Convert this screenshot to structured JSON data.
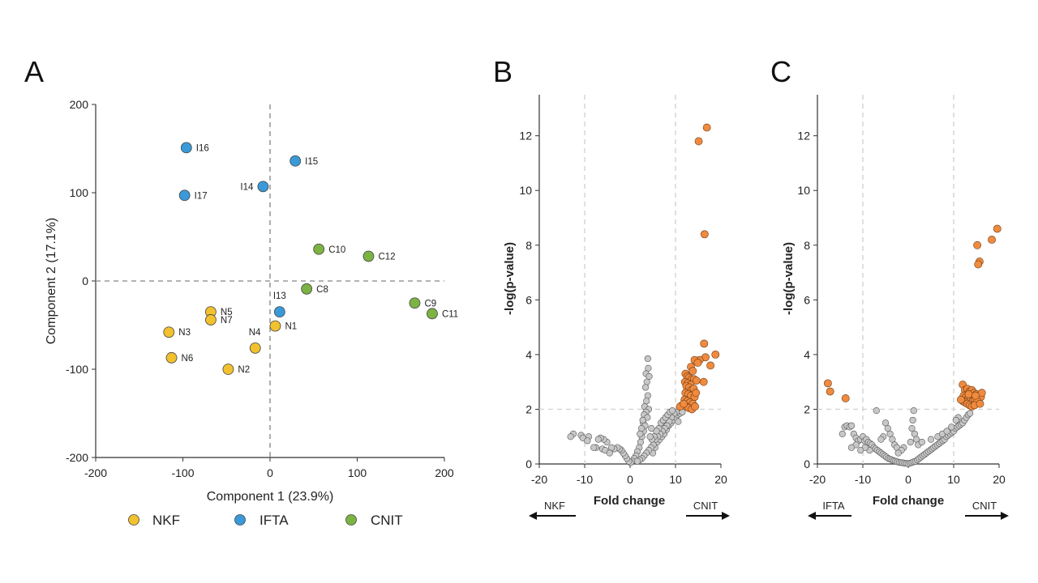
{
  "colors": {
    "NKF": "#f2c12e",
    "IFTA": "#3a9ad9",
    "CNIT": "#7cb342",
    "sig": "#f08a3e",
    "nonsig": "#c8c8c8"
  },
  "legend": [
    {
      "key": "NKF",
      "label": "NKF"
    },
    {
      "key": "IFTA",
      "label": "IFTA"
    },
    {
      "key": "CNIT",
      "label": "CNIT"
    }
  ],
  "chart_data": [
    {
      "panel": "A",
      "type": "scatter",
      "xlabel": "Component 1 (23.9%)",
      "ylabel": "Component 2 (17.1%)",
      "xlim": [
        -200,
        200
      ],
      "ylim": [
        -200,
        200
      ],
      "xticks": [
        -200,
        -100,
        0,
        100,
        200
      ],
      "yticks": [
        -200,
        -100,
        0,
        100,
        200
      ],
      "reference_lines": {
        "x": 0,
        "y": 0
      },
      "points": [
        {
          "label": "I16",
          "group": "IFTA",
          "x": -96,
          "y": 151
        },
        {
          "label": "I15",
          "group": "IFTA",
          "x": 29,
          "y": 136
        },
        {
          "label": "I14",
          "group": "IFTA",
          "x": -8,
          "y": 107
        },
        {
          "label": "I17",
          "group": "IFTA",
          "x": -98,
          "y": 97
        },
        {
          "label": "I13",
          "group": "IFTA",
          "x": 11,
          "y": -35
        },
        {
          "label": "C10",
          "group": "CNIT",
          "x": 56,
          "y": 36
        },
        {
          "label": "C12",
          "group": "CNIT",
          "x": 113,
          "y": 28
        },
        {
          "label": "C8",
          "group": "CNIT",
          "x": 42,
          "y": -9
        },
        {
          "label": "C9",
          "group": "CNIT",
          "x": 166,
          "y": -25
        },
        {
          "label": "C11",
          "group": "CNIT",
          "x": 186,
          "y": -37
        },
        {
          "label": "N5",
          "group": "NKF",
          "x": -68,
          "y": -35
        },
        {
          "label": "N7",
          "group": "NKF",
          "x": -68,
          "y": -44
        },
        {
          "label": "N3",
          "group": "NKF",
          "x": -116,
          "y": -58
        },
        {
          "label": "N6",
          "group": "NKF",
          "x": -113,
          "y": -87
        },
        {
          "label": "N1",
          "group": "NKF",
          "x": 6,
          "y": -51
        },
        {
          "label": "N4",
          "group": "NKF",
          "x": -17,
          "y": -76
        },
        {
          "label": "N2",
          "group": "NKF",
          "x": -48,
          "y": -100
        }
      ]
    },
    {
      "panel": "B",
      "type": "scatter",
      "subtype": "volcano",
      "xlabel": "Fold change",
      "ylabel": "-log(p-value)",
      "xlim": [
        -20,
        20
      ],
      "ylim": [
        0,
        13.5
      ],
      "xticks": [
        -20,
        -10,
        0,
        10,
        20
      ],
      "yticks": [
        0,
        2,
        4,
        6,
        8,
        10,
        12
      ],
      "reference_lines": {
        "x": [
          -10,
          10
        ],
        "y": 2
      },
      "direction_labels": {
        "left": "NKF",
        "right": "CNIT"
      },
      "significant_points": [
        [
          16.9,
          12.3
        ],
        [
          15.1,
          11.8
        ],
        [
          16.4,
          8.4
        ],
        [
          16.3,
          4.4
        ],
        [
          18.8,
          4.0
        ],
        [
          16.6,
          3.9
        ],
        [
          15.3,
          3.8
        ],
        [
          14.2,
          3.8
        ],
        [
          14.9,
          3.7
        ],
        [
          13.4,
          3.55
        ],
        [
          17.7,
          3.6
        ],
        [
          13.8,
          3.4
        ],
        [
          12.2,
          3.3
        ],
        [
          12.6,
          3.2
        ],
        [
          13.0,
          3.15
        ],
        [
          13.6,
          3.1
        ],
        [
          14.1,
          3.1
        ],
        [
          14.6,
          3.05
        ],
        [
          12.1,
          3.0
        ],
        [
          12.7,
          2.95
        ],
        [
          13.3,
          2.9
        ],
        [
          16.2,
          3.0
        ],
        [
          12.4,
          2.85
        ],
        [
          13.0,
          2.8
        ],
        [
          13.5,
          2.7
        ],
        [
          14.0,
          2.75
        ],
        [
          12.2,
          2.6
        ],
        [
          12.8,
          2.55
        ],
        [
          13.4,
          2.5
        ],
        [
          14.2,
          2.45
        ],
        [
          12.0,
          2.35
        ],
        [
          12.6,
          2.3
        ],
        [
          13.2,
          2.25
        ],
        [
          13.8,
          2.2
        ],
        [
          11.5,
          2.15
        ],
        [
          12.3,
          2.1
        ],
        [
          11.0,
          2.1
        ],
        [
          12.9,
          2.05
        ],
        [
          13.6,
          2.0
        ],
        [
          14.3,
          2.1
        ],
        [
          11.8,
          2.2
        ],
        [
          14.5,
          2.6
        ]
      ],
      "nonsignificant_points": [
        [
          3.9,
          3.85
        ],
        [
          4.0,
          3.5
        ],
        [
          3.5,
          3.3
        ],
        [
          4.2,
          3.2
        ],
        [
          3.7,
          3.0
        ],
        [
          3.4,
          2.8
        ],
        [
          3.9,
          2.5
        ],
        [
          3.6,
          2.3
        ],
        [
          3.2,
          2.1
        ],
        [
          4.1,
          2.0
        ],
        [
          3.5,
          1.9
        ],
        [
          3.1,
          1.8
        ],
        [
          3.8,
          1.7
        ],
        [
          2.9,
          1.5
        ],
        [
          3.3,
          1.4
        ],
        [
          3.0,
          1.2
        ],
        [
          2.6,
          1.0
        ],
        [
          2.3,
          0.8
        ],
        [
          2.0,
          0.6
        ],
        [
          1.6,
          0.45
        ],
        [
          1.3,
          0.3
        ],
        [
          0.9,
          0.2
        ],
        [
          0.5,
          0.1
        ],
        [
          0.1,
          0.05
        ],
        [
          -0.3,
          0.1
        ],
        [
          -0.7,
          0.2
        ],
        [
          -1.1,
          0.3
        ],
        [
          -1.5,
          0.4
        ],
        [
          -1.9,
          0.5
        ],
        [
          -2.3,
          0.55
        ],
        [
          -2.8,
          0.6
        ],
        [
          -3.5,
          0.55
        ],
        [
          -4.1,
          0.6
        ],
        [
          -5.1,
          0.8
        ],
        [
          -5.8,
          0.9
        ],
        [
          -6.5,
          0.95
        ],
        [
          -7.0,
          0.9
        ],
        [
          -7.5,
          0.6
        ],
        [
          -8.0,
          0.6
        ],
        [
          -9.1,
          1.0
        ],
        [
          -10.8,
          1.05
        ],
        [
          -12.5,
          1.1
        ],
        [
          -13.1,
          1.0
        ],
        [
          -10.4,
          0.95
        ],
        [
          -9.4,
          0.85
        ],
        [
          -6.1,
          0.55
        ],
        [
          -5.5,
          0.5
        ],
        [
          -4.5,
          0.4
        ],
        [
          5.0,
          0.4
        ],
        [
          5.5,
          0.6
        ],
        [
          6.0,
          0.8
        ],
        [
          6.5,
          0.9
        ],
        [
          7.0,
          1.0
        ],
        [
          7.5,
          1.1
        ],
        [
          8.0,
          1.25
        ],
        [
          8.5,
          1.4
        ],
        [
          9.0,
          1.5
        ],
        [
          9.5,
          1.6
        ],
        [
          10.0,
          1.7
        ],
        [
          10.5,
          1.8
        ],
        [
          11.0,
          1.85
        ],
        [
          11.5,
          1.9
        ],
        [
          10.2,
          1.9
        ],
        [
          9.7,
          1.85
        ],
        [
          9.1,
          1.7
        ],
        [
          8.6,
          1.55
        ],
        [
          8.1,
          1.4
        ],
        [
          7.6,
          1.3
        ],
        [
          7.1,
          1.2
        ],
        [
          6.6,
          1.1
        ],
        [
          6.1,
          1.0
        ],
        [
          5.6,
          0.9
        ],
        [
          5.1,
          0.7
        ],
        [
          4.6,
          0.6
        ],
        [
          4.1,
          0.5
        ],
        [
          3.6,
          0.4
        ],
        [
          3.1,
          0.3
        ],
        [
          2.6,
          0.2
        ],
        [
          2.1,
          0.15
        ],
        [
          1.6,
          0.1
        ],
        [
          6.8,
          1.5
        ],
        [
          7.3,
          1.6
        ],
        [
          7.8,
          1.7
        ],
        [
          8.3,
          1.8
        ],
        [
          8.8,
          1.9
        ],
        [
          9.3,
          1.95
        ],
        [
          6.3,
          1.3
        ],
        [
          5.8,
          1.2
        ],
        [
          5.3,
          1.0
        ],
        [
          4.8,
          0.9
        ],
        [
          2.5,
          1.3
        ],
        [
          2.8,
          1.6
        ],
        [
          2.2,
          1.1
        ],
        [
          4.4,
          1.0
        ],
        [
          4.7,
          1.3
        ],
        [
          10.6,
          1.55
        ]
      ]
    },
    {
      "panel": "C",
      "type": "scatter",
      "subtype": "volcano",
      "xlabel": "Fold change",
      "ylabel": "-log(p-value)",
      "xlim": [
        -20,
        20
      ],
      "ylim": [
        0,
        13.5
      ],
      "xticks": [
        -20,
        -10,
        0,
        10,
        20
      ],
      "yticks": [
        0,
        2,
        4,
        6,
        8,
        10,
        12
      ],
      "reference_lines": {
        "x": [
          -10,
          10
        ],
        "y": 2
      },
      "direction_labels": {
        "left": "IFTA",
        "right": "CNIT"
      },
      "significant_points": [
        [
          19.6,
          8.6
        ],
        [
          18.4,
          8.2
        ],
        [
          15.2,
          8.0
        ],
        [
          15.7,
          7.4
        ],
        [
          15.4,
          7.3
        ],
        [
          -17.7,
          2.95
        ],
        [
          -17.2,
          2.65
        ],
        [
          -13.8,
          2.4
        ],
        [
          12.0,
          2.9
        ],
        [
          12.5,
          2.7
        ],
        [
          13.0,
          2.75
        ],
        [
          13.5,
          2.65
        ],
        [
          14.0,
          2.7
        ],
        [
          14.5,
          2.6
        ],
        [
          15.0,
          2.55
        ],
        [
          15.5,
          2.5
        ],
        [
          16.0,
          2.45
        ],
        [
          12.2,
          2.5
        ],
        [
          12.7,
          2.45
        ],
        [
          13.2,
          2.4
        ],
        [
          13.7,
          2.35
        ],
        [
          14.2,
          2.3
        ],
        [
          14.7,
          2.35
        ],
        [
          15.2,
          2.3
        ],
        [
          12.0,
          2.3
        ],
        [
          12.5,
          2.25
        ],
        [
          13.0,
          2.2
        ],
        [
          13.5,
          2.15
        ],
        [
          14.0,
          2.1
        ],
        [
          14.6,
          2.15
        ],
        [
          11.6,
          2.35
        ],
        [
          15.8,
          2.2
        ],
        [
          16.2,
          2.6
        ],
        [
          13.3,
          2.55
        ],
        [
          14.8,
          2.5
        ]
      ],
      "nonsignificant_points": [
        [
          -14.5,
          1.1
        ],
        [
          -14.0,
          1.35
        ],
        [
          -13.5,
          1.4
        ],
        [
          -12.9,
          1.35
        ],
        [
          -12.5,
          1.4
        ],
        [
          -12.0,
          1.1
        ],
        [
          -11.5,
          0.95
        ],
        [
          -11.0,
          0.85
        ],
        [
          -10.5,
          0.9
        ],
        [
          -10.0,
          1.0
        ],
        [
          -9.6,
          0.85
        ],
        [
          -9.2,
          0.9
        ],
        [
          -8.8,
          0.8
        ],
        [
          -8.4,
          0.75
        ],
        [
          -8.0,
          0.7
        ],
        [
          -7.6,
          0.6
        ],
        [
          -7.2,
          0.55
        ],
        [
          -6.8,
          0.5
        ],
        [
          -6.4,
          0.45
        ],
        [
          -6.0,
          0.4
        ],
        [
          -5.6,
          0.35
        ],
        [
          -5.2,
          0.3
        ],
        [
          -4.8,
          0.25
        ],
        [
          -4.4,
          0.2
        ],
        [
          -4.0,
          0.18
        ],
        [
          -3.6,
          0.15
        ],
        [
          -3.2,
          0.12
        ],
        [
          -2.8,
          0.1
        ],
        [
          -2.4,
          0.08
        ],
        [
          -2.0,
          0.06
        ],
        [
          -1.6,
          0.05
        ],
        [
          -1.2,
          0.04
        ],
        [
          -0.8,
          0.03
        ],
        [
          -0.4,
          0.02
        ],
        [
          0.0,
          0.01
        ],
        [
          0.4,
          0.03
        ],
        [
          0.8,
          0.05
        ],
        [
          1.2,
          0.08
        ],
        [
          1.6,
          0.1
        ],
        [
          2.0,
          0.15
        ],
        [
          2.4,
          0.2
        ],
        [
          2.8,
          0.25
        ],
        [
          3.2,
          0.3
        ],
        [
          3.6,
          0.35
        ],
        [
          4.0,
          0.4
        ],
        [
          4.4,
          0.45
        ],
        [
          4.8,
          0.5
        ],
        [
          5.2,
          0.55
        ],
        [
          5.6,
          0.6
        ],
        [
          6.0,
          0.65
        ],
        [
          6.4,
          0.7
        ],
        [
          6.8,
          0.75
        ],
        [
          7.2,
          0.8
        ],
        [
          7.6,
          0.85
        ],
        [
          8.0,
          0.9
        ],
        [
          8.4,
          1.0
        ],
        [
          8.8,
          1.05
        ],
        [
          9.2,
          1.1
        ],
        [
          9.6,
          1.15
        ],
        [
          10.0,
          1.2
        ],
        [
          10.4,
          1.3
        ],
        [
          10.8,
          1.35
        ],
        [
          11.2,
          1.4
        ],
        [
          11.6,
          1.45
        ],
        [
          12.0,
          1.5
        ],
        [
          12.4,
          1.6
        ],
        [
          12.8,
          1.7
        ],
        [
          13.2,
          1.8
        ],
        [
          13.6,
          1.85
        ],
        [
          11.0,
          1.7
        ],
        [
          10.5,
          1.6
        ],
        [
          -7.0,
          1.95
        ],
        [
          -5.0,
          1.5
        ],
        [
          -4.5,
          1.3
        ],
        [
          -4.0,
          1.1
        ],
        [
          -3.5,
          0.9
        ],
        [
          -3.0,
          0.7
        ],
        [
          -2.5,
          0.6
        ],
        [
          -5.5,
          1.0
        ],
        [
          -6.0,
          0.9
        ],
        [
          1.2,
          1.95
        ],
        [
          1.0,
          1.6
        ],
        [
          0.8,
          1.3
        ],
        [
          1.4,
          1.1
        ],
        [
          1.8,
          0.9
        ],
        [
          2.2,
          0.7
        ],
        [
          0.5,
          0.8
        ],
        [
          -1.0,
          0.6
        ],
        [
          -1.5,
          0.5
        ],
        [
          -2.2,
          0.4
        ],
        [
          5.0,
          0.9
        ],
        [
          6.5,
          1.0
        ],
        [
          7.5,
          1.1
        ],
        [
          8.5,
          1.2
        ],
        [
          9.5,
          1.35
        ],
        [
          3.0,
          0.8
        ],
        [
          -8.5,
          0.5
        ],
        [
          -9.5,
          0.6
        ],
        [
          -10.5,
          0.5
        ],
        [
          -11.5,
          0.7
        ],
        [
          -12.5,
          0.6
        ]
      ]
    }
  ]
}
